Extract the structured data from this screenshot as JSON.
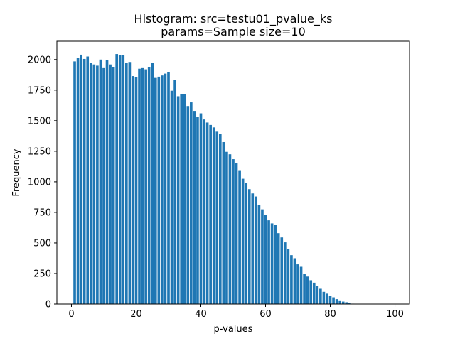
{
  "chart_data": {
    "type": "bar",
    "title_line1": "Histogram: src=testu01_pvalue_ks",
    "title_line2": "params=Sample size=10",
    "xlabel": "p-values",
    "ylabel": "Frequency",
    "xlim": [
      -4.5,
      104.5
    ],
    "ylim": [
      0,
      2150
    ],
    "x_ticks": [
      0,
      20,
      40,
      60,
      80,
      100
    ],
    "x_tick_labels": [
      "0",
      "20",
      "40",
      "60",
      "80",
      "100"
    ],
    "y_ticks": [
      0,
      250,
      500,
      750,
      1000,
      1250,
      1500,
      1750,
      2000
    ],
    "y_tick_labels": [
      "0",
      "250",
      "500",
      "750",
      "1000",
      "1250",
      "1500",
      "1750",
      "2000"
    ],
    "bar_width": 0.8,
    "bar_color": "#1f77b4",
    "x": [
      1,
      2,
      3,
      4,
      5,
      6,
      7,
      8,
      9,
      10,
      11,
      12,
      13,
      14,
      15,
      16,
      17,
      18,
      19,
      20,
      21,
      22,
      23,
      24,
      25,
      26,
      27,
      28,
      29,
      30,
      31,
      32,
      33,
      34,
      35,
      36,
      37,
      38,
      39,
      40,
      41,
      42,
      43,
      44,
      45,
      46,
      47,
      48,
      49,
      50,
      51,
      52,
      53,
      54,
      55,
      56,
      57,
      58,
      59,
      60,
      61,
      62,
      63,
      64,
      65,
      66,
      67,
      68,
      69,
      70,
      71,
      72,
      73,
      74,
      75,
      76,
      77,
      78,
      79,
      80,
      81,
      82,
      83,
      84,
      85,
      86,
      87,
      88,
      89,
      90,
      91,
      92,
      93,
      94,
      95,
      96,
      97,
      98,
      99,
      100
    ],
    "values": [
      1985,
      2015,
      2040,
      2005,
      2025,
      1975,
      1960,
      1950,
      2000,
      1930,
      1995,
      1960,
      1935,
      2045,
      2035,
      2035,
      1975,
      1980,
      1865,
      1855,
      1925,
      1930,
      1920,
      1935,
      1970,
      1850,
      1860,
      1870,
      1885,
      1900,
      1745,
      1835,
      1700,
      1715,
      1715,
      1620,
      1650,
      1580,
      1530,
      1560,
      1510,
      1485,
      1465,
      1445,
      1410,
      1390,
      1325,
      1245,
      1225,
      1185,
      1155,
      1095,
      1025,
      990,
      940,
      905,
      880,
      810,
      775,
      730,
      685,
      660,
      645,
      580,
      545,
      505,
      450,
      400,
      375,
      325,
      305,
      245,
      225,
      195,
      175,
      150,
      125,
      100,
      85,
      65,
      55,
      40,
      30,
      20,
      15,
      8,
      3,
      0,
      0,
      0,
      0,
      0,
      0,
      0,
      0,
      0,
      0,
      0,
      0,
      0
    ]
  }
}
